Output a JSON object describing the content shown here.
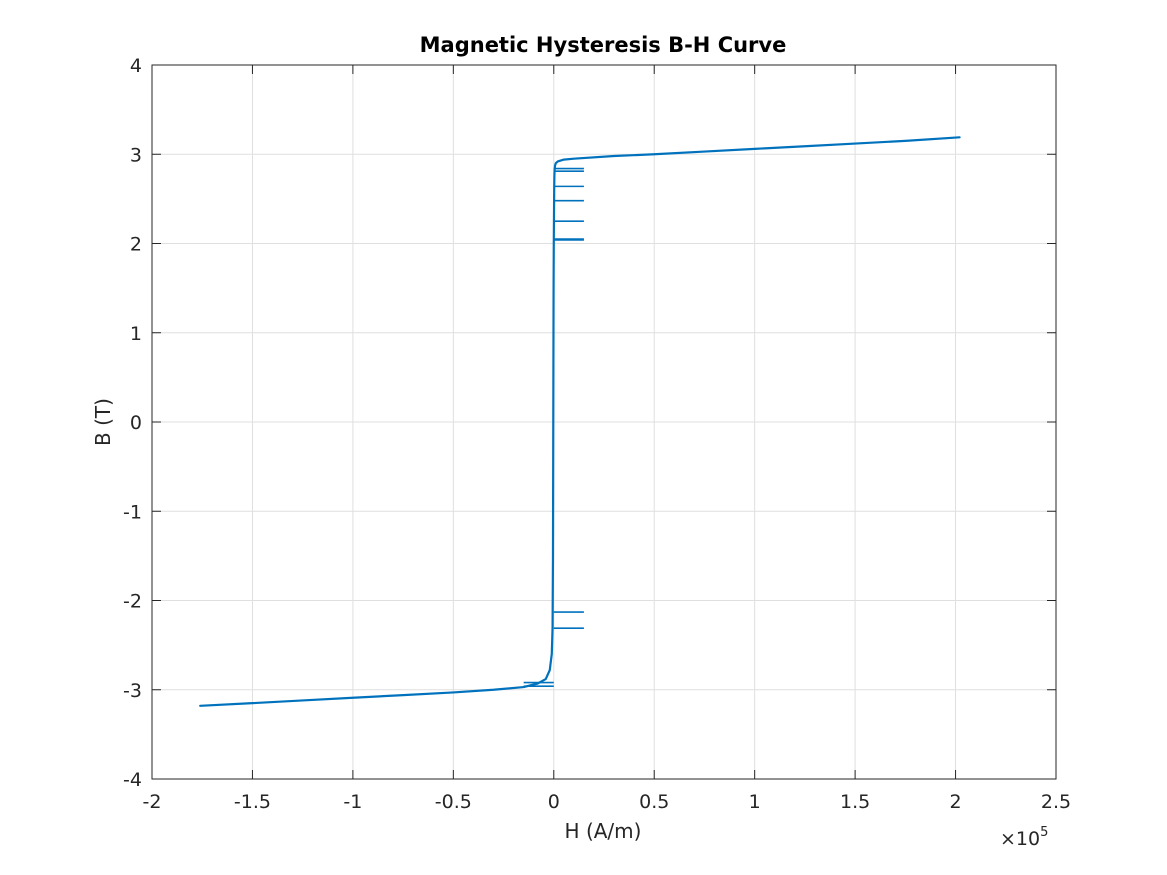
{
  "chart_data": {
    "type": "line",
    "title": "Magnetic Hysteresis B-H Curve",
    "xlabel": "H (A/m)",
    "ylabel": "B (T)",
    "x_multiplier": {
      "base": "×10",
      "exponent": "5"
    },
    "xlim": [
      -2,
      2.5
    ],
    "ylim": [
      -4,
      4
    ],
    "x_ticks": [
      -2,
      -1.5,
      -1,
      -0.5,
      0,
      0.5,
      1,
      1.5,
      2,
      2.5
    ],
    "x_tick_labels": [
      "-2",
      "-1.5",
      "-1",
      "-0.5",
      "0",
      "0.5",
      "1",
      "1.5",
      "2",
      "2.5"
    ],
    "y_ticks": [
      -4,
      -3,
      -2,
      -1,
      0,
      1,
      2,
      3,
      4
    ],
    "y_tick_labels": [
      "-4",
      "-3",
      "-2",
      "-1",
      "0",
      "1",
      "2",
      "3",
      "4"
    ],
    "grid": true,
    "box": true,
    "legend": "none",
    "color": "#0072BD",
    "x_unit_note": "x values in units of 10^5 A/m",
    "series": [
      {
        "x": [
          -1.76,
          -1.5,
          -1.25,
          -1.0,
          -0.75,
          -0.5,
          -0.3,
          -0.15,
          -0.08,
          -0.04,
          -0.02,
          -0.01,
          -0.006,
          -0.004,
          -0.003,
          -0.002,
          -0.001,
          0.0,
          0.001,
          0.002,
          0.003,
          0.004,
          0.006,
          0.01,
          0.02,
          0.05,
          0.1,
          0.3,
          0.5,
          0.75,
          1.0,
          1.25,
          1.5,
          1.75,
          2.02
        ],
        "y": [
          -3.18,
          -3.15,
          -3.12,
          -3.09,
          -3.06,
          -3.03,
          -3.0,
          -2.97,
          -2.93,
          -2.88,
          -2.78,
          -2.6,
          -2.3,
          -1.5,
          -0.5,
          0.5,
          1.5,
          2.0,
          2.3,
          2.6,
          2.75,
          2.82,
          2.87,
          2.9,
          2.92,
          2.94,
          2.95,
          2.98,
          3.0,
          3.03,
          3.06,
          3.09,
          3.12,
          3.15,
          3.19
        ]
      }
    ],
    "horizontal_segments": [
      {
        "y": 2.84,
        "x1": 0.0,
        "x2": 0.15
      },
      {
        "y": 2.81,
        "x1": 0.0,
        "x2": 0.15
      },
      {
        "y": 2.64,
        "x1": 0.0,
        "x2": 0.15
      },
      {
        "y": 2.48,
        "x1": 0.0,
        "x2": 0.15
      },
      {
        "y": 2.25,
        "x1": 0.0,
        "x2": 0.15
      },
      {
        "y": 2.05,
        "x1": 0.0,
        "x2": 0.15
      },
      {
        "y": 2.04,
        "x1": 0.0,
        "x2": 0.15
      },
      {
        "y": -2.13,
        "x1": 0.0,
        "x2": 0.15
      },
      {
        "y": -2.31,
        "x1": 0.0,
        "x2": 0.15
      },
      {
        "y": -2.92,
        "x1": -0.15,
        "x2": 0.0
      },
      {
        "y": -2.96,
        "x1": -0.15,
        "x2": 0.0
      }
    ]
  }
}
